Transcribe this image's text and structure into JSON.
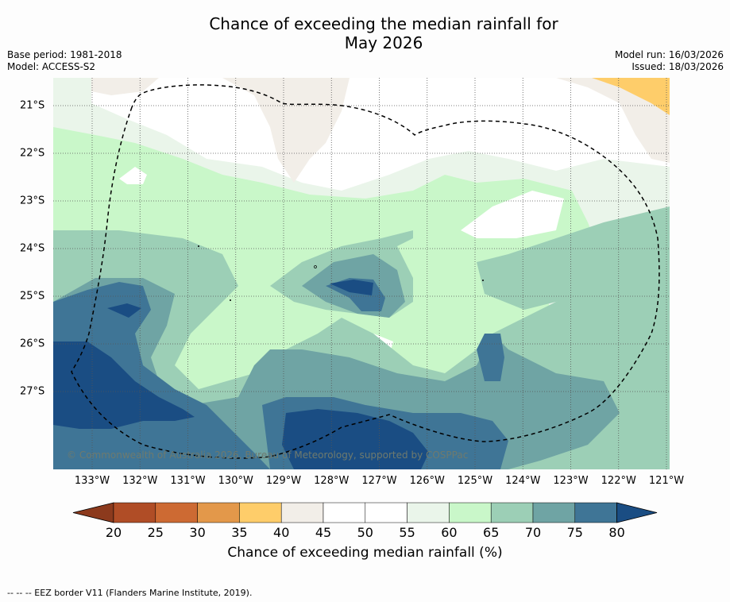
{
  "title_line1": "Chance of exceeding the median rainfall for",
  "title_line2": "May 2026",
  "base_period": "Base period: 1981-2018",
  "model": "Model: ACCESS-S2",
  "model_run": "Model run: 16/03/2026",
  "issued": "Issued: 18/03/2026",
  "copyright": "© Commonwealth of Australia 2026, Bureau of Meteorology, supported by COSPPac",
  "footnote": "--  --  -- EEZ border V11 (Flanders Marine Institute, 2019).",
  "x_ticks": [
    "133°W",
    "132°W",
    "131°W",
    "130°W",
    "129°W",
    "128°W",
    "127°W",
    "126°W",
    "125°W",
    "124°W",
    "123°W",
    "122°W",
    "121°W"
  ],
  "y_ticks": [
    "21°S",
    "22°S",
    "23°S",
    "24°S",
    "25°S",
    "26°S",
    "27°S"
  ],
  "colorbar": {
    "label": "Chance of exceeding median rainfall (%)",
    "ticks": [
      "20",
      "25",
      "30",
      "35",
      "40",
      "45",
      "50",
      "55",
      "60",
      "65",
      "70",
      "75",
      "80"
    ],
    "colors": [
      "#8c3a1d",
      "#b04d26",
      "#cd6a33",
      "#e3984a",
      "#fecd6a",
      "#f2eee8",
      "#ffffff",
      "#ffffff",
      "#eaf5ea",
      "#c9f7c9",
      "#9ccfb6",
      "#6fa4a4",
      "#3f7596",
      "#1a4d83"
    ]
  },
  "map_colors": {
    "c40": "#fecd6a",
    "c45": "#f2eee8",
    "c50": "#ffffff",
    "c55": "#eaf5ea",
    "c60": "#c9f7c9",
    "c65": "#9ccfb6",
    "c70": "#6fa4a4",
    "c75": "#3f7596",
    "c80": "#1a4d83"
  }
}
